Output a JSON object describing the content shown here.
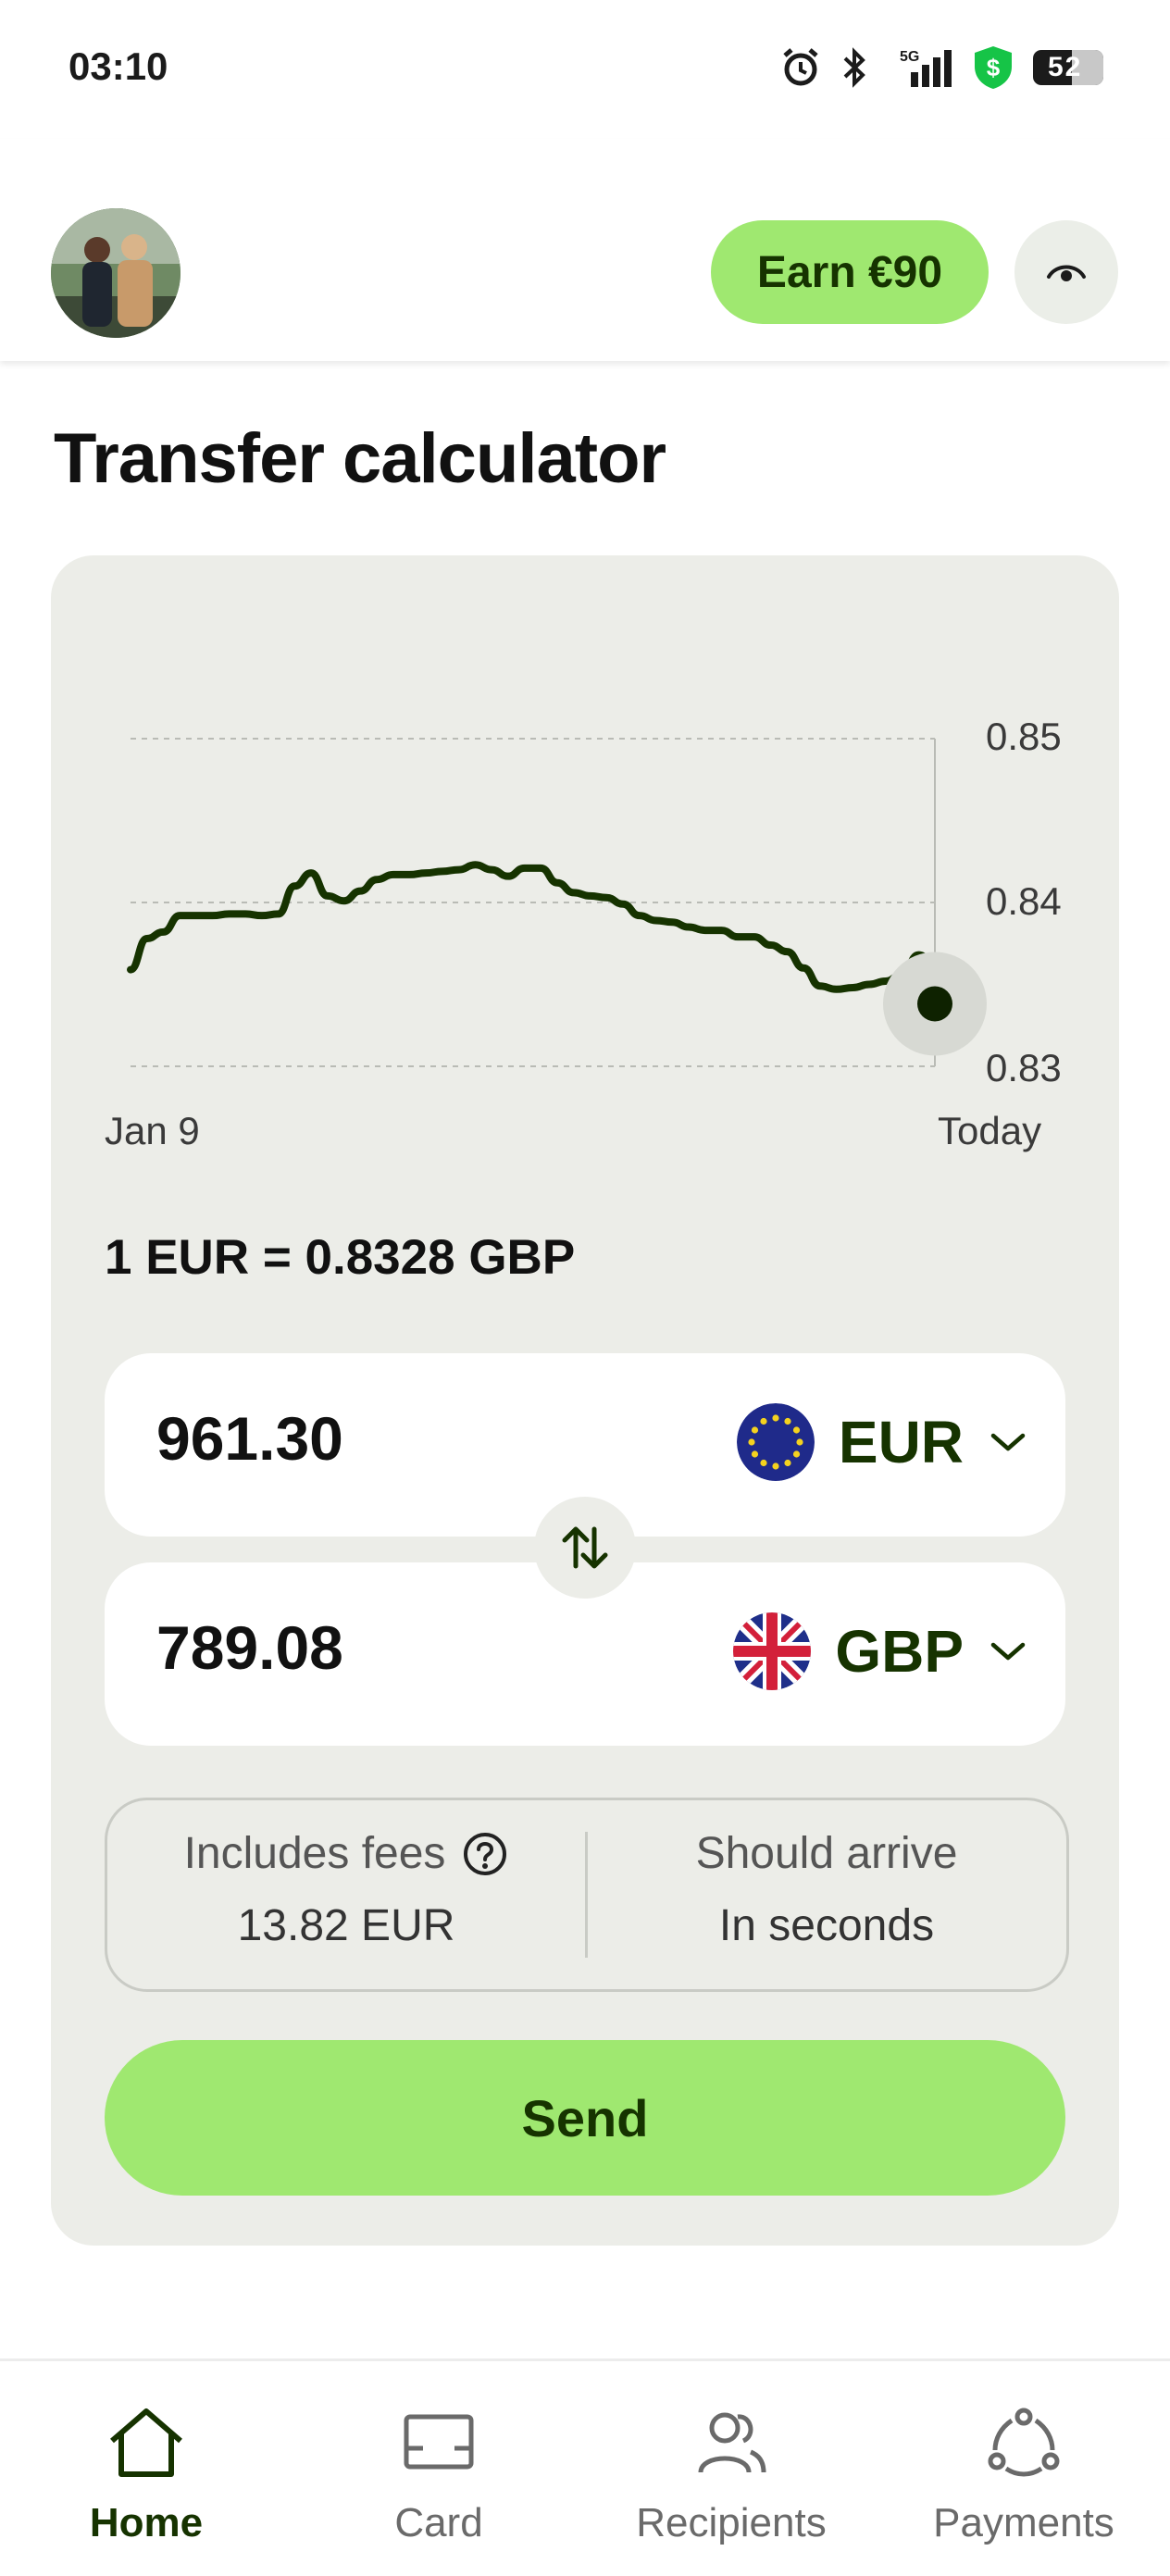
{
  "status_bar": {
    "time": "03:10",
    "icons": [
      "alarm-icon",
      "bluetooth-icon",
      "signal-5g-icon",
      "shield-dollar-icon",
      "battery-icon"
    ],
    "battery": "52"
  },
  "header": {
    "earn_label": "Earn €90",
    "avatar_icon": "profile-photo",
    "visibility_icon": "eye-icon"
  },
  "page_title": "Transfer calculator",
  "chart_data": {
    "type": "line",
    "x_labels": [
      "Jan 9",
      "Today"
    ],
    "y_ticks": [
      "0.85",
      "0.84",
      "0.83"
    ],
    "ylim": [
      0.83,
      0.85
    ],
    "grid": true,
    "series": [
      {
        "values": [
          0.8359,
          0.8378,
          0.8382,
          0.8392,
          0.8392,
          0.8392,
          0.8393,
          0.8393,
          0.8392,
          0.8393,
          0.841,
          0.8418,
          0.8404,
          0.8401,
          0.8407,
          0.8414,
          0.8417,
          0.8417,
          0.8418,
          0.8419,
          0.842,
          0.8423,
          0.842,
          0.8416,
          0.8421,
          0.8421,
          0.8412,
          0.8406,
          0.8404,
          0.8403,
          0.8399,
          0.8392,
          0.8389,
          0.8388,
          0.8385,
          0.8383,
          0.8383,
          0.8379,
          0.8379,
          0.8374,
          0.837,
          0.836,
          0.8349,
          0.8347,
          0.8348,
          0.835,
          0.8352,
          0.8356,
          0.8368,
          0.8363
        ]
      }
    ]
  },
  "rate_text": "1 EUR = 0.8328 GBP",
  "send_amount": {
    "value": "961.30",
    "currency": "EUR",
    "flag": "eu-flag-icon"
  },
  "receive_amount": {
    "value": "789.08",
    "currency": "GBP",
    "flag": "uk-flag-icon"
  },
  "fees": {
    "label": "Includes fees",
    "value": "13.82 EUR"
  },
  "arrival": {
    "label": "Should arrive",
    "value": "In seconds"
  },
  "send_button": "Send",
  "nav": [
    {
      "label": "Home",
      "icon": "home-icon",
      "active": true
    },
    {
      "label": "Card",
      "icon": "card-icon",
      "active": false
    },
    {
      "label": "Recipients",
      "icon": "recipients-icon",
      "active": false
    },
    {
      "label": "Payments",
      "icon": "payments-icon",
      "active": false
    }
  ]
}
